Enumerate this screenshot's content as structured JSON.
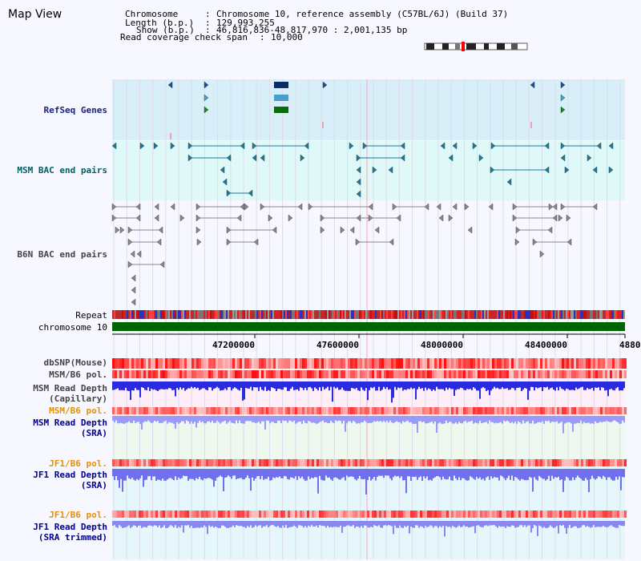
{
  "title": "Map View",
  "info": {
    "chromosome_key": "Chromosome",
    "chromosome_value": "Chromosome 10, reference assembly (C57BL/6J) (Build 37)",
    "length_key": "Length (b.p.)",
    "length_value": "129,993,255",
    "show_key": "Show (b.p.)",
    "show_value": "46,816,836-48,817,970 : 2,001,135 bp",
    "coverage_key": "Read coverage check span",
    "coverage_value": "10,000"
  },
  "tracks": {
    "refseq": "RefSeq Genes",
    "msm_bac": "MSM BAC end pairs",
    "b6n_bac": "B6N BAC end pairs",
    "repeat": "Repeat",
    "chromosome": "chromosome 10",
    "dbsnp": "dbSNP(Mouse)",
    "msm_b6_pol_1": "MSM/B6 pol.",
    "msm_read_depth_cap_1": "MSM Read Depth",
    "msm_read_depth_cap_2": "(Capillary)",
    "msm_b6_pol_2": "MSM/B6 pol.",
    "msm_read_depth_sra_1": "MSM Read Depth",
    "msm_read_depth_sra_2": "(SRA)",
    "jf1_b6_pol_1": "JF1/B6 pol.",
    "jf1_read_depth_sra_1": "JF1 Read Depth",
    "jf1_read_depth_sra_2": "(SRA)",
    "jf1_b6_pol_2": "JF1/B6 pol.",
    "jf1_read_depth_trim_1": "JF1 Read Depth",
    "jf1_read_depth_trim_2": "(SRA trimmed)"
  },
  "axis": {
    "ticks": [
      "47200000",
      "47600000",
      "48000000",
      "48400000",
      "4880"
    ]
  },
  "colors": {
    "refseq_label": "#1a237e",
    "msm_label": "#006064",
    "b6n_label": "#444444",
    "pol_label_orange": "#e89000",
    "depth_label_navy": "#00008b",
    "refseq_bg": "#d8eef8",
    "msm_bg": "#dff8f8",
    "chromosome_bar": "#006400"
  }
}
